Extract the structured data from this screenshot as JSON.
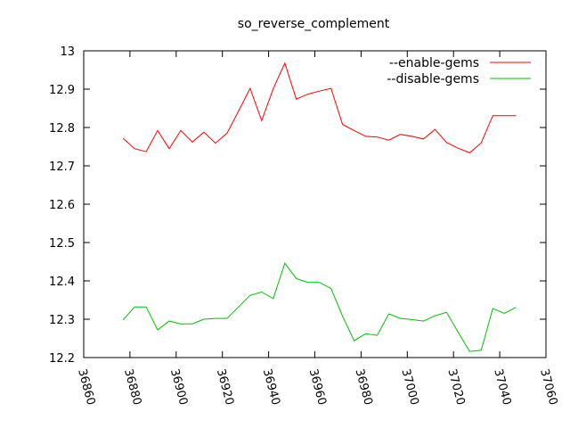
{
  "chart_data": {
    "type": "line",
    "title": "so_reverse_complement",
    "xlabel": "",
    "ylabel": "",
    "xlim": [
      36860,
      37060
    ],
    "ylim": [
      12.2,
      13.0
    ],
    "xticks": [
      36860,
      36880,
      36900,
      36920,
      36940,
      36960,
      36980,
      37000,
      37020,
      37040,
      37060
    ],
    "yticks": [
      12.2,
      12.3,
      12.4,
      12.5,
      12.6,
      12.7,
      12.8,
      12.9,
      13.0
    ],
    "ytick_labels": [
      "12.2",
      "12.3",
      "12.4",
      "12.5",
      "12.6",
      "12.7",
      "12.8",
      "12.9",
      "13"
    ],
    "grid": false,
    "legend_position": "top-right",
    "series": [
      {
        "name": "--enable-gems",
        "color": "#ff0000",
        "points": [
          [
            36877,
            12.772
          ],
          [
            36882,
            12.745
          ],
          [
            36887,
            12.737
          ],
          [
            36892,
            12.792
          ],
          [
            36897,
            12.745
          ],
          [
            36902,
            12.792
          ],
          [
            36907,
            12.762
          ],
          [
            36912,
            12.788
          ],
          [
            36917,
            12.759
          ],
          [
            36922,
            12.785
          ],
          [
            36927,
            12.843
          ],
          [
            36932,
            12.902
          ],
          [
            36937,
            12.818
          ],
          [
            36942,
            12.901
          ],
          [
            36947,
            12.968
          ],
          [
            36952,
            12.874
          ],
          [
            36957,
            12.887
          ],
          [
            36962,
            12.895
          ],
          [
            36967,
            12.902
          ],
          [
            36972,
            12.808
          ],
          [
            36977,
            12.792
          ],
          [
            36982,
            12.777
          ],
          [
            36987,
            12.775
          ],
          [
            36992,
            12.767
          ],
          [
            36997,
            12.782
          ],
          [
            37002,
            12.777
          ],
          [
            37007,
            12.77
          ],
          [
            37012,
            12.795
          ],
          [
            37017,
            12.761
          ],
          [
            37022,
            12.746
          ],
          [
            37027,
            12.734
          ],
          [
            37032,
            12.76
          ],
          [
            37037,
            12.831
          ],
          [
            37042,
            12.831
          ],
          [
            37047,
            12.831
          ]
        ]
      },
      {
        "name": "--disable-gems",
        "color": "#00c000",
        "points": [
          [
            36877,
            12.298
          ],
          [
            36882,
            12.332
          ],
          [
            36887,
            12.332
          ],
          [
            36892,
            12.272
          ],
          [
            36897,
            12.295
          ],
          [
            36902,
            12.288
          ],
          [
            36907,
            12.288
          ],
          [
            36912,
            12.3
          ],
          [
            36917,
            12.302
          ],
          [
            36922,
            12.302
          ],
          [
            36927,
            12.332
          ],
          [
            36932,
            12.362
          ],
          [
            36937,
            12.371
          ],
          [
            36942,
            12.354
          ],
          [
            36947,
            12.446
          ],
          [
            36952,
            12.406
          ],
          [
            36957,
            12.396
          ],
          [
            36962,
            12.396
          ],
          [
            36967,
            12.38
          ],
          [
            36972,
            12.308
          ],
          [
            36977,
            12.244
          ],
          [
            36982,
            12.262
          ],
          [
            36987,
            12.258
          ],
          [
            36992,
            12.314
          ],
          [
            36997,
            12.302
          ],
          [
            37002,
            12.299
          ],
          [
            37007,
            12.295
          ],
          [
            37012,
            12.309
          ],
          [
            37017,
            12.318
          ],
          [
            37022,
            12.266
          ],
          [
            37027,
            12.216
          ],
          [
            37032,
            12.219
          ],
          [
            37037,
            12.328
          ],
          [
            37042,
            12.315
          ],
          [
            37047,
            12.331
          ]
        ]
      }
    ]
  }
}
